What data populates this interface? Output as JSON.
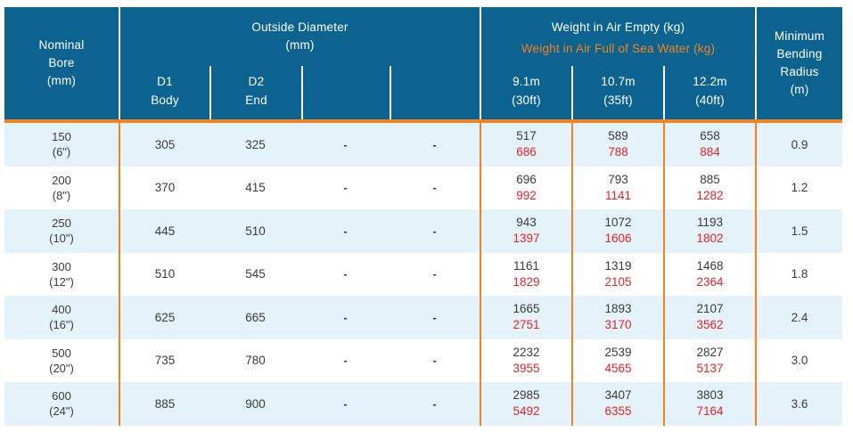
{
  "colors": {
    "header-bg": "#0d6390",
    "accent-orange": "#f58220",
    "row-alt": "#e4f2f9",
    "text-dark": "#3b3b3b",
    "text-red": "#ec2127",
    "dash-navy": "#2e3192",
    "header-text": "#ffffff"
  },
  "header": {
    "nominal_bore": "Nominal\nBore\n(mm)",
    "outside_diameter": "Outside Diameter\n(mm)",
    "od_subcols": [
      {
        "code": "D1",
        "label": "Body"
      },
      {
        "code": "D2",
        "label": "End"
      },
      {
        "code": "",
        "label": ""
      },
      {
        "code": "",
        "label": ""
      }
    ],
    "weight_empty_title": "Weight in Air Empty (kg)",
    "weight_full_title": "Weight in Air Full of Sea Water (kg)",
    "weight_subcols": [
      {
        "length": "9.1m",
        "feet": "(30ft)"
      },
      {
        "length": "10.7m",
        "feet": "(35ft)"
      },
      {
        "length": "12.2m",
        "feet": "(40ft)"
      }
    ],
    "min_bending_radius": "Minimum\nBending\nRadius\n(m)"
  },
  "rows": [
    {
      "bore_mm": "150",
      "bore_in": "(6\")",
      "d1": "305",
      "d2": "325",
      "c4": "-",
      "c5": "-",
      "w1_empty": "517",
      "w1_full": "686",
      "w2_empty": "589",
      "w2_full": "788",
      "w3_empty": "658",
      "w3_full": "884",
      "radius": "0.9"
    },
    {
      "bore_mm": "200",
      "bore_in": "(8\")",
      "d1": "370",
      "d2": "415",
      "c4": "-",
      "c5": "-",
      "w1_empty": "696",
      "w1_full": "992",
      "w2_empty": "793",
      "w2_full": "1141",
      "w3_empty": "885",
      "w3_full": "1282",
      "radius": "1.2"
    },
    {
      "bore_mm": "250",
      "bore_in": "(10\")",
      "d1": "445",
      "d2": "510",
      "c4": "-",
      "c5": "-",
      "w1_empty": "943",
      "w1_full": "1397",
      "w2_empty": "1072",
      "w2_full": "1606",
      "w3_empty": "1193",
      "w3_full": "1802",
      "radius": "1.5"
    },
    {
      "bore_mm": "300",
      "bore_in": "(12\")",
      "d1": "510",
      "d2": "545",
      "c4": "-",
      "c5": "-",
      "w1_empty": "1161",
      "w1_full": "1829",
      "w2_empty": "1319",
      "w2_full": "2105",
      "w3_empty": "1468",
      "w3_full": "2364",
      "radius": "1.8"
    },
    {
      "bore_mm": "400",
      "bore_in": "(16\")",
      "d1": "625",
      "d2": "665",
      "c4": "-",
      "c5": "-",
      "w1_empty": "1665",
      "w1_full": "2751",
      "w2_empty": "1893",
      "w2_full": "3170",
      "w3_empty": "2107",
      "w3_full": "3562",
      "radius": "2.4"
    },
    {
      "bore_mm": "500",
      "bore_in": "(20\")",
      "d1": "735",
      "d2": "780",
      "c4": "-",
      "c5": "-",
      "w1_empty": "2232",
      "w1_full": "3955",
      "w2_empty": "2539",
      "w2_full": "4565",
      "w3_empty": "2827",
      "w3_full": "5137",
      "radius": "3.0"
    },
    {
      "bore_mm": "600",
      "bore_in": "(24\")",
      "d1": "885",
      "d2": "900",
      "c4": "-",
      "c5": "-",
      "w1_empty": "2985",
      "w1_full": "5492",
      "w2_empty": "3407",
      "w2_full": "6355",
      "w3_empty": "3803",
      "w3_full": "7164",
      "radius": "3.6"
    }
  ]
}
